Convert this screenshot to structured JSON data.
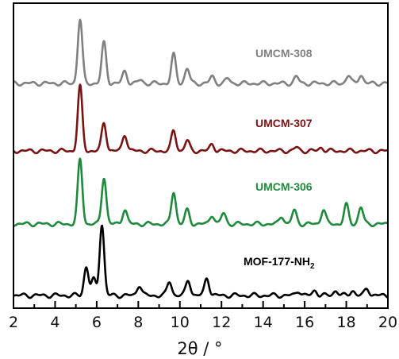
{
  "chart_data": {
    "type": "line",
    "xlabel_main": "2θ / °",
    "xlim": [
      2,
      20
    ],
    "x_ticks": [
      2,
      4,
      6,
      8,
      10,
      12,
      14,
      16,
      18,
      20
    ],
    "y_ticks_shown": false,
    "grid": false,
    "legend": "inline labels next to each trace",
    "series": [
      {
        "name": "UMCM-308",
        "color": "#808080",
        "offset": 3,
        "peaks": [
          {
            "x": 5.2,
            "y": 0.95
          },
          {
            "x": 6.35,
            "y": 0.6
          },
          {
            "x": 7.35,
            "y": 0.18
          },
          {
            "x": 8.1,
            "y": 0.05
          },
          {
            "x": 9.7,
            "y": 0.42
          },
          {
            "x": 10.35,
            "y": 0.22
          },
          {
            "x": 11.55,
            "y": 0.1
          },
          {
            "x": 12.3,
            "y": 0.07
          },
          {
            "x": 15.6,
            "y": 0.1
          },
          {
            "x": 18.1,
            "y": 0.12
          },
          {
            "x": 18.7,
            "y": 0.13
          }
        ]
      },
      {
        "name": "UMCM-307",
        "color": "#7a1414",
        "offset": 2,
        "peaks": [
          {
            "x": 5.2,
            "y": 0.95
          },
          {
            "x": 6.35,
            "y": 0.42
          },
          {
            "x": 7.35,
            "y": 0.25
          },
          {
            "x": 9.7,
            "y": 0.3
          },
          {
            "x": 10.35,
            "y": 0.15
          },
          {
            "x": 11.55,
            "y": 0.1
          },
          {
            "x": 15.6,
            "y": 0.05
          },
          {
            "x": 16.8,
            "y": 0.05
          }
        ]
      },
      {
        "name": "UMCM-306",
        "color": "#1e8a3c",
        "offset": 1,
        "peaks": [
          {
            "x": 5.2,
            "y": 0.95
          },
          {
            "x": 6.35,
            "y": 0.7
          },
          {
            "x": 7.35,
            "y": 0.22
          },
          {
            "x": 9.7,
            "y": 0.48
          },
          {
            "x": 10.35,
            "y": 0.2
          },
          {
            "x": 11.55,
            "y": 0.14
          },
          {
            "x": 12.1,
            "y": 0.16
          },
          {
            "x": 14.9,
            "y": 0.12
          },
          {
            "x": 15.5,
            "y": 0.2
          },
          {
            "x": 16.9,
            "y": 0.22
          },
          {
            "x": 18.0,
            "y": 0.28
          },
          {
            "x": 18.7,
            "y": 0.25
          }
        ]
      },
      {
        "name": "MOF-177-NH2",
        "label_main": "MOF-177-NH",
        "label_sub": "2",
        "color": "#000000",
        "offset": 0,
        "peaks": [
          {
            "x": 5.5,
            "y": 0.4
          },
          {
            "x": 5.85,
            "y": 0.22
          },
          {
            "x": 6.25,
            "y": 1.0
          },
          {
            "x": 8.05,
            "y": 0.15
          },
          {
            "x": 9.5,
            "y": 0.2
          },
          {
            "x": 10.4,
            "y": 0.22
          },
          {
            "x": 11.3,
            "y": 0.25
          },
          {
            "x": 15.7,
            "y": 0.07
          },
          {
            "x": 16.5,
            "y": 0.07
          },
          {
            "x": 17.5,
            "y": 0.07
          },
          {
            "x": 18.3,
            "y": 0.07
          },
          {
            "x": 19.0,
            "y": 0.1
          }
        ]
      }
    ]
  }
}
